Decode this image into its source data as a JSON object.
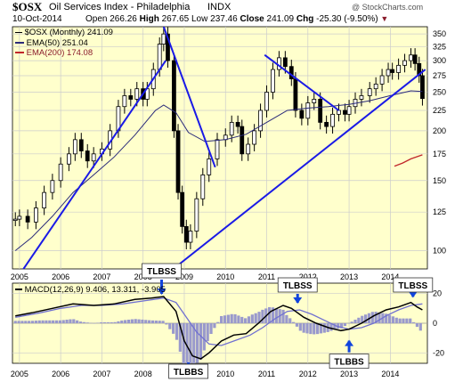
{
  "header": {
    "symbol": "$OSX",
    "name": "Oil Services Index - Philadelphia",
    "exchange": "INDX",
    "copyright": "@ StockCharts.com",
    "date": "10-Oct-2014",
    "open_label": "Open",
    "open": "266.26",
    "high_label": "High",
    "high": "267.65",
    "low_label": "Low",
    "low": "237.46",
    "close_label": "Close",
    "close": "241.09",
    "chg_label": "Chg",
    "chg": "-25.30 (-9.50%)",
    "chg_arrow": "▼"
  },
  "legend": {
    "price": "$OSX (Monthly) 241.09",
    "ema50": "EMA(50) 251.04",
    "ema200": "EMA(200) 174.08",
    "macd": "MACD(12,26,9) 9.406, 13.311, -3.905"
  },
  "colors": {
    "panel_bg": "#ffffcc",
    "grid": "#cccccc",
    "trend": "#1a1ae6",
    "ema50": "#2a2a7a",
    "ema200": "#c0262a",
    "macd": "#000000",
    "signal": "#7070d0",
    "hist": "#9999cc",
    "callout_arrow": "#1144dd"
  },
  "annotations": [
    {
      "text": "TLBSS",
      "year": 2008.45,
      "value": 18
    },
    {
      "text": "TLBBS",
      "year": 2009.1,
      "value": -30
    },
    {
      "text": "TLBSS",
      "year": 2011.75,
      "value": 12
    },
    {
      "text": "TLBBS",
      "year": 2013.0,
      "value": -10
    },
    {
      "text": "TLBSS",
      "year": 2014.55,
      "value": 16
    }
  ],
  "chart_data": [
    {
      "type": "candlestick",
      "title": "$OSX Oil Services Index - Philadelphia INDX",
      "x_ticks": [
        "2005",
        "2006",
        "2007",
        "2008",
        "2009",
        "2010",
        "2011",
        "2012",
        "2013",
        "2014"
      ],
      "y_scale": "log",
      "y_ticks": [
        100,
        125,
        150,
        175,
        200,
        225,
        250,
        275,
        300,
        325,
        350
      ],
      "ylim": [
        90,
        365
      ],
      "xlim": [
        2004.83,
        2014.9
      ],
      "series": [
        {
          "name": "$OSX (Monthly)",
          "kind": "price",
          "values": [
            [
              2004.9,
              120
            ],
            [
              2005.0,
              122
            ],
            [
              2005.2,
              118
            ],
            [
              2005.4,
              128
            ],
            [
              2005.6,
              140
            ],
            [
              2005.8,
              150
            ],
            [
              2006.0,
              165
            ],
            [
              2006.2,
              175
            ],
            [
              2006.35,
              190
            ],
            [
              2006.5,
              178
            ],
            [
              2006.65,
              168
            ],
            [
              2006.8,
              175
            ],
            [
              2007.0,
              180
            ],
            [
              2007.2,
              200
            ],
            [
              2007.4,
              230
            ],
            [
              2007.55,
              245
            ],
            [
              2007.7,
              240
            ],
            [
              2007.85,
              255
            ],
            [
              2008.0,
              240
            ],
            [
              2008.1,
              255
            ],
            [
              2008.25,
              285
            ],
            [
              2008.4,
              330
            ],
            [
              2008.5,
              350
            ],
            [
              2008.6,
              300
            ],
            [
              2008.75,
              200
            ],
            [
              2008.85,
              140
            ],
            [
              2008.95,
              115
            ],
            [
              2009.05,
              105
            ],
            [
              2009.15,
              112
            ],
            [
              2009.3,
              135
            ],
            [
              2009.45,
              155
            ],
            [
              2009.6,
              170
            ],
            [
              2009.8,
              190
            ],
            [
              2010.0,
              195
            ],
            [
              2010.15,
              210
            ],
            [
              2010.3,
              205
            ],
            [
              2010.4,
              175
            ],
            [
              2010.55,
              185
            ],
            [
              2010.7,
              200
            ],
            [
              2010.85,
              225
            ],
            [
              2011.0,
              250
            ],
            [
              2011.15,
              285
            ],
            [
              2011.3,
              305
            ],
            [
              2011.45,
              290
            ],
            [
              2011.6,
              270
            ],
            [
              2011.7,
              225
            ],
            [
              2011.85,
              215
            ],
            [
              2012.0,
              235
            ],
            [
              2012.15,
              240
            ],
            [
              2012.3,
              210
            ],
            [
              2012.45,
              205
            ],
            [
              2012.6,
              220
            ],
            [
              2012.75,
              225
            ],
            [
              2012.9,
              220
            ],
            [
              2013.0,
              230
            ],
            [
              2013.15,
              240
            ],
            [
              2013.3,
              245
            ],
            [
              2013.5,
              255
            ],
            [
              2013.65,
              262
            ],
            [
              2013.8,
              275
            ],
            [
              2013.95,
              285
            ],
            [
              2014.05,
              280
            ],
            [
              2014.2,
              292
            ],
            [
              2014.35,
              300
            ],
            [
              2014.5,
              310
            ],
            [
              2014.6,
              295
            ],
            [
              2014.7,
              275
            ],
            [
              2014.78,
              241
            ]
          ]
        },
        {
          "name": "EMA(50)",
          "values": [
            [
              2004.9,
              100
            ],
            [
              2005.3,
              108
            ],
            [
              2005.8,
              122
            ],
            [
              2006.3,
              140
            ],
            [
              2006.8,
              155
            ],
            [
              2007.3,
              172
            ],
            [
              2007.8,
              195
            ],
            [
              2008.3,
              225
            ],
            [
              2008.5,
              232
            ],
            [
              2008.8,
              222
            ],
            [
              2009.1,
              198
            ],
            [
              2009.5,
              188
            ],
            [
              2010.0,
              190
            ],
            [
              2010.5,
              196
            ],
            [
              2011.0,
              210
            ],
            [
              2011.5,
              225
            ],
            [
              2012.0,
              228
            ],
            [
              2012.5,
              230
            ],
            [
              2013.0,
              233
            ],
            [
              2013.5,
              238
            ],
            [
              2014.0,
              245
            ],
            [
              2014.5,
              252
            ],
            [
              2014.78,
              251
            ]
          ]
        },
        {
          "name": "EMA(200)",
          "values": [
            [
              2014.1,
              163
            ],
            [
              2014.3,
              166
            ],
            [
              2014.5,
              170
            ],
            [
              2014.78,
              174
            ]
          ]
        }
      ]
    },
    {
      "type": "line",
      "title": "MACD(12,26,9)",
      "x_ticks": [
        "2005",
        "2006",
        "2007",
        "2008",
        "2009",
        "2010",
        "2011",
        "2012",
        "2013",
        "2014"
      ],
      "y_ticks": [
        20,
        0,
        -20
      ],
      "ylim": [
        -27,
        27
      ],
      "xlim": [
        2004.83,
        2014.9
      ],
      "series": [
        {
          "name": "MACD",
          "values": [
            [
              2004.9,
              5
            ],
            [
              2005.3,
              7
            ],
            [
              2005.8,
              10
            ],
            [
              2006.3,
              13
            ],
            [
              2006.8,
              12
            ],
            [
              2007.3,
              13
            ],
            [
              2007.8,
              16
            ],
            [
              2008.2,
              17
            ],
            [
              2008.5,
              18
            ],
            [
              2008.8,
              8
            ],
            [
              2009.0,
              -12
            ],
            [
              2009.2,
              -22
            ],
            [
              2009.4,
              -24
            ],
            [
              2009.6,
              -20
            ],
            [
              2009.9,
              -12
            ],
            [
              2010.2,
              -8
            ],
            [
              2010.5,
              -7
            ],
            [
              2010.8,
              0
            ],
            [
              2011.1,
              8
            ],
            [
              2011.4,
              12
            ],
            [
              2011.6,
              10
            ],
            [
              2011.9,
              4
            ],
            [
              2012.2,
              0
            ],
            [
              2012.5,
              -3
            ],
            [
              2012.8,
              -5
            ],
            [
              2013.0,
              -4
            ],
            [
              2013.3,
              0
            ],
            [
              2013.6,
              5
            ],
            [
              2013.9,
              9
            ],
            [
              2014.2,
              11
            ],
            [
              2014.5,
              14
            ],
            [
              2014.65,
              11
            ],
            [
              2014.78,
              9
            ]
          ]
        },
        {
          "name": "Signal",
          "values": [
            [
              2004.9,
              4
            ],
            [
              2005.5,
              7
            ],
            [
              2006.0,
              10
            ],
            [
              2006.5,
              12
            ],
            [
              2007.0,
              12
            ],
            [
              2007.5,
              13
            ],
            [
              2008.0,
              15
            ],
            [
              2008.5,
              17
            ],
            [
              2008.8,
              14
            ],
            [
              2009.0,
              6
            ],
            [
              2009.3,
              -6
            ],
            [
              2009.6,
              -14
            ],
            [
              2009.9,
              -15
            ],
            [
              2010.2,
              -12
            ],
            [
              2010.6,
              -8
            ],
            [
              2010.9,
              -3
            ],
            [
              2011.2,
              3
            ],
            [
              2011.5,
              8
            ],
            [
              2011.8,
              9
            ],
            [
              2012.1,
              6
            ],
            [
              2012.4,
              2
            ],
            [
              2012.7,
              -2
            ],
            [
              2013.0,
              -4
            ],
            [
              2013.3,
              -3
            ],
            [
              2013.6,
              0
            ],
            [
              2013.9,
              5
            ],
            [
              2014.2,
              9
            ],
            [
              2014.5,
              12
            ],
            [
              2014.78,
              13
            ]
          ]
        }
      ]
    }
  ]
}
